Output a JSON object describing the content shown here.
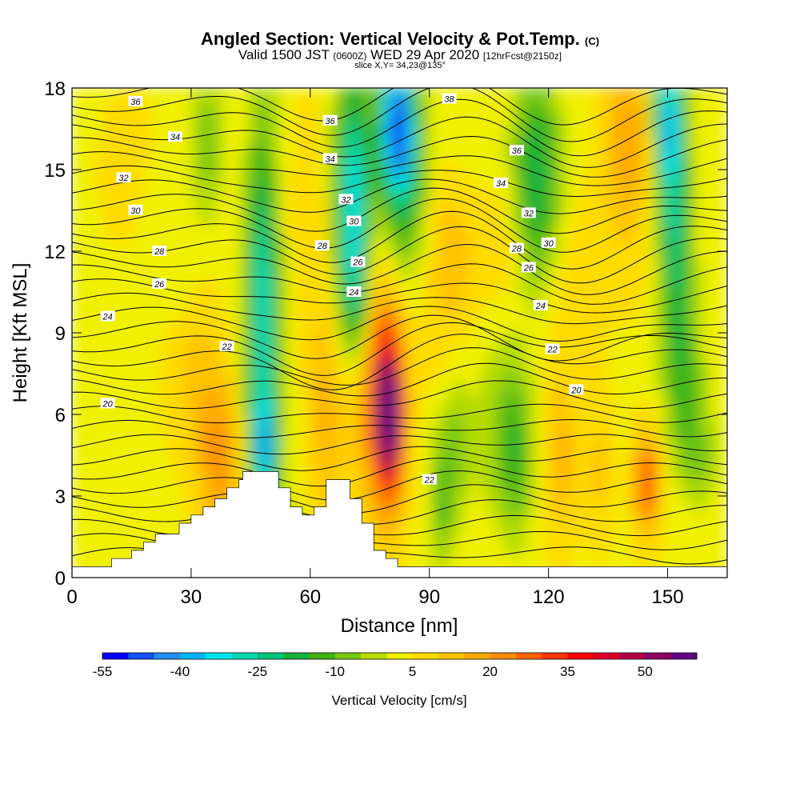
{
  "header": {
    "title": "Angled Section: Vertical Velocity & Pot.Temp.",
    "title_suffix": "(C)",
    "subtitle_a": "Valid 1500 JST",
    "subtitle_b": "(0600Z)",
    "subtitle_c": "WED 29 Apr 2020",
    "subtitle_d": "[12hrFcst@2150z]",
    "slice": "slice X,Y= 34,23@135°"
  },
  "chart_data": {
    "type": "heatmap",
    "title": "Angled Section: Vertical Velocity & Pot.Temp.",
    "xlabel": "Distance [nm]",
    "ylabel": "Height [Kft MSL]",
    "xlim": [
      0,
      165
    ],
    "ylim": [
      0,
      18
    ],
    "x_ticks": [
      "0",
      "30",
      "60",
      "90",
      "120",
      "150"
    ],
    "x_tick_values": [
      0,
      30,
      60,
      90,
      120,
      150
    ],
    "y_ticks": [
      "0",
      "3",
      "6",
      "9",
      "12",
      "15",
      "18"
    ],
    "y_tick_values": [
      0,
      3,
      6,
      9,
      12,
      15,
      18
    ],
    "colorbar": {
      "label": "Vertical Velocity [cm/s]",
      "ticks": [
        "-55",
        "-40",
        "-25",
        "-10",
        "5",
        "20",
        "35",
        "50"
      ],
      "tick_values": [
        -55,
        -40,
        -25,
        -10,
        5,
        20,
        35,
        50
      ],
      "min": -55,
      "max": 60,
      "step": 5,
      "colors": [
        "#0000ff",
        "#1450f5",
        "#1e8cf5",
        "#00b4f5",
        "#00e6f0",
        "#00dcb4",
        "#00c878",
        "#14b43c",
        "#3cb414",
        "#78c814",
        "#b4dc00",
        "#f0f000",
        "#ffdc00",
        "#ffc300",
        "#ffaa00",
        "#ff8c00",
        "#ff6400",
        "#ff3200",
        "#ff0000",
        "#dc0028",
        "#b4004b",
        "#8c0064",
        "#640082"
      ]
    },
    "terrain": [
      [
        0,
        0.4
      ],
      [
        10,
        0.4
      ],
      [
        10,
        0.7
      ],
      [
        15,
        0.7
      ],
      [
        15,
        1.0
      ],
      [
        18,
        1.0
      ],
      [
        18,
        1.3
      ],
      [
        21,
        1.3
      ],
      [
        21,
        1.6
      ],
      [
        27,
        1.6
      ],
      [
        27,
        2.0
      ],
      [
        30,
        2.0
      ],
      [
        30,
        2.3
      ],
      [
        33,
        2.3
      ],
      [
        33,
        2.6
      ],
      [
        36,
        2.6
      ],
      [
        36,
        2.9
      ],
      [
        39,
        2.9
      ],
      [
        39,
        3.3
      ],
      [
        42,
        3.3
      ],
      [
        42,
        3.6
      ],
      [
        43,
        3.6
      ],
      [
        43,
        3.9
      ],
      [
        52,
        3.9
      ],
      [
        52,
        3.3
      ],
      [
        55,
        3.3
      ],
      [
        55,
        2.6
      ],
      [
        58,
        2.6
      ],
      [
        58,
        2.3
      ],
      [
        61,
        2.3
      ],
      [
        61,
        2.6
      ],
      [
        64,
        2.6
      ],
      [
        64,
        3.6
      ],
      [
        70,
        3.6
      ],
      [
        70,
        2.9
      ],
      [
        73,
        2.9
      ],
      [
        73,
        2.0
      ],
      [
        76,
        2.0
      ],
      [
        76,
        1.0
      ],
      [
        79,
        1.0
      ],
      [
        79,
        0.7
      ],
      [
        82,
        0.7
      ],
      [
        82,
        0.4
      ],
      [
        165,
        0.4
      ]
    ],
    "isentrope_labels": [
      {
        "text": "36",
        "x": 16,
        "y": 17.5
      },
      {
        "text": "34",
        "x": 26,
        "y": 16.2
      },
      {
        "text": "32",
        "x": 13,
        "y": 14.7
      },
      {
        "text": "30",
        "x": 16,
        "y": 13.5
      },
      {
        "text": "28",
        "x": 22,
        "y": 12.0
      },
      {
        "text": "26",
        "x": 22,
        "y": 10.8
      },
      {
        "text": "24",
        "x": 9,
        "y": 9.6
      },
      {
        "text": "22",
        "x": 39,
        "y": 8.5
      },
      {
        "text": "20",
        "x": 9,
        "y": 6.4
      },
      {
        "text": "36",
        "x": 65,
        "y": 16.8
      },
      {
        "text": "34",
        "x": 65,
        "y": 15.4
      },
      {
        "text": "32",
        "x": 69,
        "y": 13.9
      },
      {
        "text": "30",
        "x": 71,
        "y": 13.1
      },
      {
        "text": "28",
        "x": 63,
        "y": 12.2
      },
      {
        "text": "26",
        "x": 72,
        "y": 11.6
      },
      {
        "text": "24",
        "x": 71,
        "y": 10.5
      },
      {
        "text": "38",
        "x": 95,
        "y": 17.6
      },
      {
        "text": "36",
        "x": 112,
        "y": 15.7
      },
      {
        "text": "34",
        "x": 108,
        "y": 14.5
      },
      {
        "text": "32",
        "x": 115,
        "y": 13.4
      },
      {
        "text": "30",
        "x": 120,
        "y": 12.3
      },
      {
        "text": "28",
        "x": 112,
        "y": 12.1
      },
      {
        "text": "26",
        "x": 115,
        "y": 11.4
      },
      {
        "text": "24",
        "x": 118,
        "y": 10.0
      },
      {
        "text": "22",
        "x": 121,
        "y": 8.4
      },
      {
        "text": "20",
        "x": 127,
        "y": 6.9
      },
      {
        "text": "22",
        "x": 90,
        "y": 3.6
      }
    ]
  }
}
